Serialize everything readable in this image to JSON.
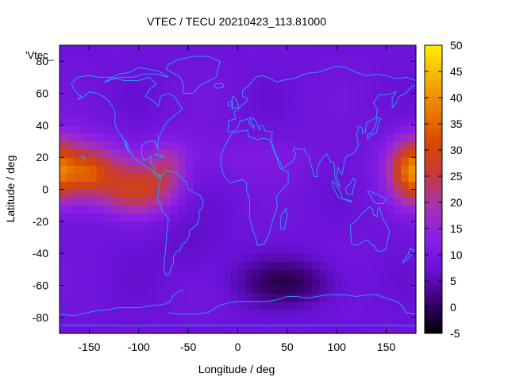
{
  "chart_data": {
    "type": "heatmap",
    "title": "VTEC / TECU 20210423_113.81000",
    "xlabel": "Longitude / deg",
    "ylabel": "Latitude / deg",
    "key_label": "'Vtec_",
    "xlim": [
      -180,
      180
    ],
    "ylim": [
      -90,
      90
    ],
    "x_ticks": [
      -150,
      -100,
      -50,
      0,
      50,
      100,
      150
    ],
    "y_ticks": [
      -80,
      -60,
      -40,
      -20,
      0,
      20,
      40,
      60,
      80
    ],
    "colorbar": {
      "range": [
        -5,
        50
      ],
      "ticks": [
        -5,
        0,
        5,
        10,
        15,
        20,
        25,
        30,
        35,
        40,
        45,
        50
      ],
      "palette": [
        "#000000",
        "#3a0072",
        "#6a12d8",
        "#8a1fe6",
        "#a833b0",
        "#c63a3a",
        "#d94a00",
        "#ea7d00",
        "#f5b400",
        "#ffee00"
      ]
    },
    "grid": {
      "lon_step": 7.5,
      "lat_step": 5
    },
    "field": {
      "background": 8,
      "features": [
        {
          "lon": -160,
          "lat": 12,
          "amp": 18,
          "sx": 32,
          "sy": 14
        },
        {
          "lon": -150,
          "lat": 10,
          "amp": 8,
          "sx": 14,
          "sy": 8
        },
        {
          "lon": -100,
          "lat": 0,
          "amp": 17,
          "sx": 25,
          "sy": 11
        },
        {
          "lon": -70,
          "lat": 15,
          "amp": 9,
          "sx": 14,
          "sy": 12
        },
        {
          "lon": 175,
          "lat": 12,
          "amp": 17,
          "sx": 14,
          "sy": 14
        },
        {
          "lon": 0,
          "lat": 20,
          "amp": 3,
          "sx": 60,
          "sy": 10
        },
        {
          "lon": 50,
          "lat": -58,
          "amp": -8,
          "sx": 35,
          "sy": 10
        },
        {
          "lon": -45,
          "lat": -35,
          "amp": -2,
          "sx": 25,
          "sy": 15
        }
      ]
    },
    "coastline_color": "#22a8f0"
  }
}
